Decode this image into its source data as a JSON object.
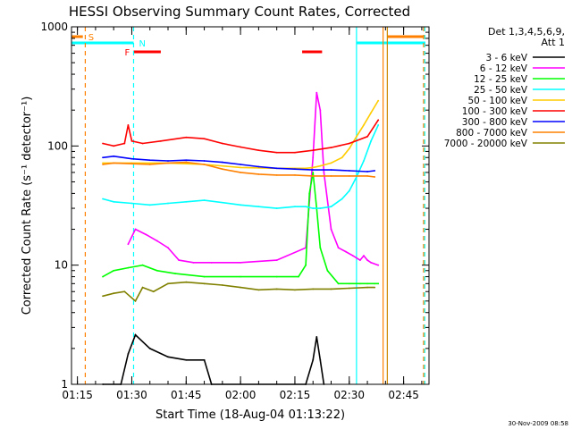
{
  "chart_data": {
    "type": "line",
    "title": "HESSI Observing Summary Count Rates, Corrected",
    "xlabel": "Start Time (18-Aug-04 01:13:22)",
    "ylabel": "Corrected Count Rate (s⁻¹ detector⁻¹)",
    "y_scale": "log",
    "ylim": [
      1,
      1000
    ],
    "xlim": [
      "01:13:22",
      "02:52:00"
    ],
    "x_ticks": [
      "01:15",
      "01:30",
      "01:45",
      "02:00",
      "02:15",
      "02:30",
      "02:45"
    ],
    "y_ticks": [
      "1",
      "10",
      "100",
      "1000"
    ],
    "legend": {
      "title": "Det 1,3,4,5,6,9,",
      "subtitle": "Att 1",
      "position": "right"
    },
    "series": [
      {
        "name": "3 - 6 keV",
        "color": "#000000",
        "x": [
          "01:22",
          "01:27",
          "01:29",
          "01:31",
          "01:35",
          "01:40",
          "01:45",
          "01:50",
          "01:52",
          "02:18",
          "02:20",
          "02:21",
          "02:22",
          "02:23"
        ],
        "y": [
          1,
          1,
          1.8,
          2.6,
          2,
          1.7,
          1.6,
          1.6,
          1,
          1,
          1.6,
          2.5,
          1.6,
          1
        ]
      },
      {
        "name": "6 - 12 keV",
        "color": "#ff00ff",
        "x": [
          "01:29",
          "01:31",
          "01:34",
          "01:37",
          "01:40",
          "01:43",
          "01:47",
          "01:52",
          "02:00",
          "02:10",
          "02:18",
          "02:20",
          "02:21",
          "02:22",
          "02:23",
          "02:25",
          "02:27",
          "02:29",
          "02:31",
          "02:33",
          "02:34",
          "02:35",
          "02:36",
          "02:38"
        ],
        "y": [
          15,
          20,
          18,
          16,
          14,
          11,
          10.5,
          10.5,
          10.5,
          11,
          14,
          80,
          280,
          200,
          60,
          20,
          14,
          13,
          12,
          11,
          12,
          11,
          10.5,
          10
        ]
      },
      {
        "name": "12 - 25 keV",
        "color": "#00ff00",
        "x": [
          "01:22",
          "01:25",
          "01:29",
          "01:33",
          "01:37",
          "01:42",
          "01:50",
          "02:00",
          "02:10",
          "02:16",
          "02:18",
          "02:19",
          "02:20",
          "02:21",
          "02:22",
          "02:24",
          "02:27",
          "02:30",
          "02:33",
          "02:35",
          "02:37",
          "02:38"
        ],
        "y": [
          8,
          9,
          9.5,
          10,
          9,
          8.5,
          8,
          8,
          8,
          8,
          10,
          40,
          60,
          30,
          14,
          9,
          7,
          7,
          7,
          7,
          7,
          7
        ]
      },
      {
        "name": "25 - 50 keV",
        "color": "#00ffff",
        "x": [
          "01:22",
          "01:25",
          "01:30",
          "01:35",
          "01:40",
          "01:45",
          "01:50",
          "02:00",
          "02:05",
          "02:10",
          "02:15",
          "02:18",
          "02:20",
          "02:22",
          "02:25",
          "02:28",
          "02:30",
          "02:32",
          "02:34",
          "02:36",
          "02:38"
        ],
        "y": [
          36,
          34,
          33,
          32,
          33,
          34,
          35,
          32,
          31,
          30,
          31,
          31,
          30,
          30,
          31,
          36,
          42,
          55,
          75,
          110,
          150
        ]
      },
      {
        "name": "50 - 100 keV",
        "color": "#ffcc00",
        "x": [
          "01:22",
          "01:30",
          "01:40",
          "01:50",
          "02:00",
          "02:10",
          "02:18",
          "02:20",
          "02:22",
          "02:25",
          "02:28",
          "02:30",
          "02:32",
          "02:34",
          "02:36",
          "02:38"
        ],
        "y": [
          72,
          72,
          72,
          70,
          66,
          65,
          65,
          66,
          68,
          72,
          80,
          95,
          120,
          150,
          190,
          240
        ]
      },
      {
        "name": "100 - 300 keV",
        "color": "#ff0000",
        "x": [
          "01:22",
          "01:25",
          "01:28",
          "01:29",
          "01:30",
          "01:33",
          "01:38",
          "01:45",
          "01:50",
          "01:55",
          "02:00",
          "02:05",
          "02:10",
          "02:15",
          "02:20",
          "02:25",
          "02:30",
          "02:35",
          "02:38"
        ],
        "y": [
          105,
          100,
          105,
          150,
          110,
          105,
          110,
          118,
          115,
          105,
          98,
          92,
          88,
          88,
          92,
          97,
          105,
          120,
          165
        ]
      },
      {
        "name": "300 - 800 keV",
        "color": "#0000ff",
        "x": [
          "01:22",
          "01:25",
          "01:30",
          "01:35",
          "01:40",
          "01:45",
          "01:50",
          "01:55",
          "02:00",
          "02:05",
          "02:10",
          "02:15",
          "02:20",
          "02:25",
          "02:30",
          "02:35",
          "02:37"
        ],
        "y": [
          80,
          82,
          78,
          76,
          75,
          76,
          75,
          73,
          70,
          67,
          65,
          64,
          63,
          63,
          62,
          61,
          62
        ]
      },
      {
        "name": "800 - 7000 keV",
        "color": "#ff8000",
        "x": [
          "01:22",
          "01:25",
          "01:30",
          "01:35",
          "01:40",
          "01:45",
          "01:50",
          "01:55",
          "02:00",
          "02:05",
          "02:10",
          "02:15",
          "02:20",
          "02:25",
          "02:30",
          "02:35",
          "02:37"
        ],
        "y": [
          70,
          72,
          71,
          70,
          72,
          73,
          70,
          64,
          60,
          58,
          57,
          57,
          56,
          56,
          56,
          56,
          55
        ]
      },
      {
        "name": "7000 - 20000 keV",
        "color": "#808000",
        "x": [
          "01:22",
          "01:25",
          "01:28",
          "01:31",
          "01:33",
          "01:36",
          "01:40",
          "01:45",
          "01:50",
          "01:55",
          "02:00",
          "02:05",
          "02:10",
          "02:15",
          "02:20",
          "02:25",
          "02:30",
          "02:35",
          "02:37"
        ],
        "y": [
          5.5,
          5.8,
          6,
          5,
          6.5,
          6,
          7,
          7.2,
          7,
          6.8,
          6.5,
          6.2,
          6.3,
          6.2,
          6.3,
          6.3,
          6.4,
          6.5,
          6.5
        ]
      }
    ],
    "flags": [
      {
        "label": "S",
        "color": "#ff8000",
        "segments": [
          [
            "01:13:22",
            "01:16:30"
          ],
          [
            "02:40:30",
            "02:51:00"
          ]
        ]
      },
      {
        "label": "N",
        "color": "#00ffff",
        "segments": [
          [
            "01:13:22",
            "01:30:30"
          ],
          [
            "02:32:00",
            "02:51:00"
          ]
        ]
      },
      {
        "label": "F",
        "color": "#ff0000",
        "segments": [
          [
            "01:30:30",
            "01:38:00"
          ],
          [
            "02:17:00",
            "02:22:30"
          ]
        ]
      }
    ],
    "vlines": [
      {
        "time": "01:17:10",
        "color": "#ff8000",
        "style": "dashed"
      },
      {
        "time": "01:30:30",
        "color": "#00ffff",
        "style": "dashed"
      },
      {
        "time": "02:32:00",
        "color": "#00ffff",
        "style": "solid"
      },
      {
        "time": "02:39:20",
        "color": "#ff8000",
        "style": "solid"
      },
      {
        "time": "02:40:30",
        "color": "#cc8800",
        "style": "solid"
      },
      {
        "time": "02:50:30",
        "color": "#ff8000",
        "style": "dashed"
      },
      {
        "time": "02:50:50",
        "color": "#00ffff",
        "style": "dashed"
      }
    ],
    "footer_stamp": "30-Nov-2009 08:58"
  }
}
